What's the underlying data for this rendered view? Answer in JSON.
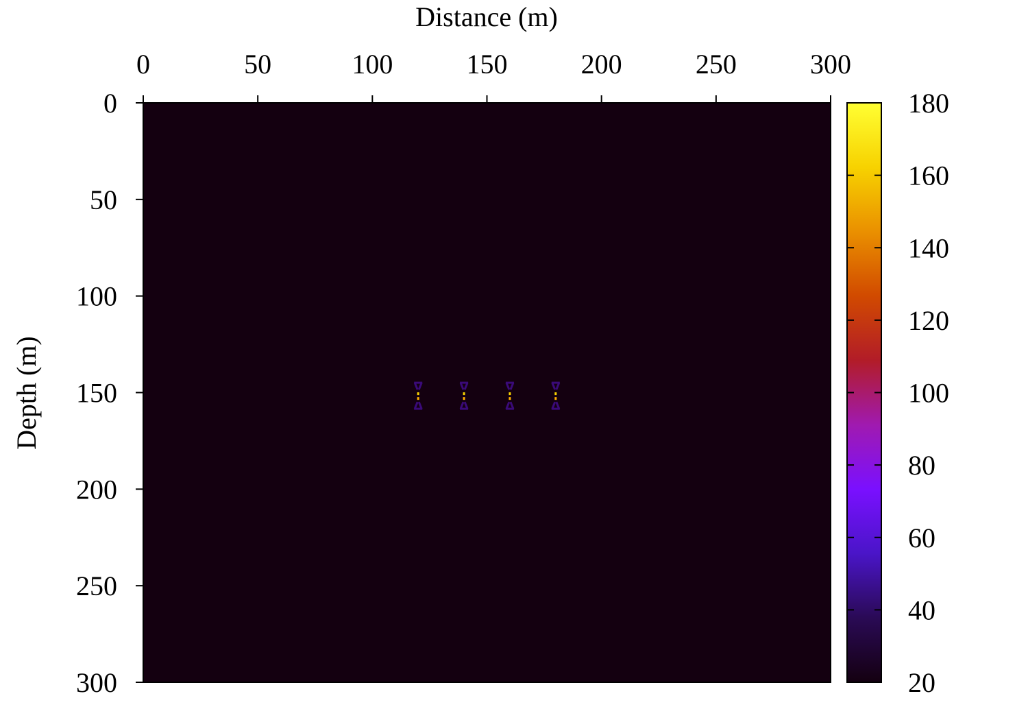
{
  "chart_data": {
    "type": "heatmap",
    "xlabel": "Distance (m)",
    "ylabel": "Depth (m)",
    "xlim": [
      0,
      300
    ],
    "ylim": [
      300,
      0
    ],
    "x_axis_position": "top",
    "y_axis_inverted": true,
    "x_ticks": [
      "0",
      "50",
      "100",
      "150",
      "200",
      "250",
      "300"
    ],
    "y_ticks": [
      "0",
      "50",
      "100",
      "150",
      "200",
      "250",
      "300"
    ],
    "grid": false,
    "background_value": 20,
    "colorbar": {
      "min": 20,
      "max": 180,
      "ticks": [
        "20",
        "40",
        "60",
        "80",
        "100",
        "120",
        "140",
        "160",
        "180"
      ],
      "colormap": [
        "#140010",
        "#2a0a55",
        "#4a15c8",
        "#7a10ff",
        "#a01ab0",
        "#b21c28",
        "#d14a00",
        "#ea9000",
        "#f7d200",
        "#ffff33"
      ]
    },
    "anomalies": [
      {
        "x": 120,
        "y": 152,
        "value": 180
      },
      {
        "x": 140,
        "y": 152,
        "value": 180
      },
      {
        "x": 160,
        "y": 152,
        "value": 180
      },
      {
        "x": 180,
        "y": 152,
        "value": 180
      }
    ]
  }
}
